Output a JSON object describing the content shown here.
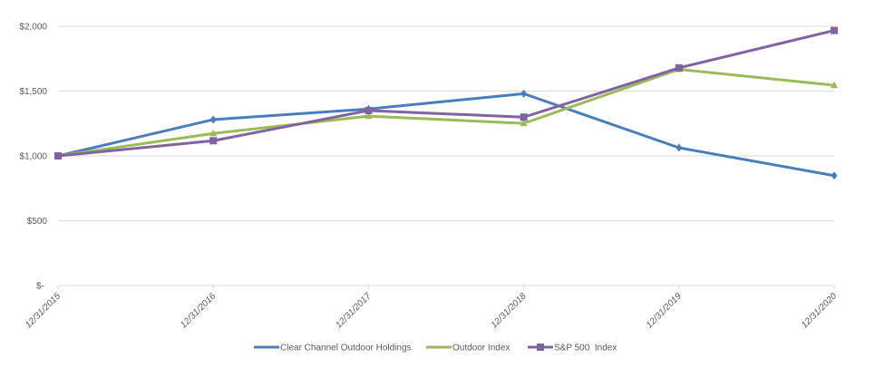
{
  "chart_data": {
    "type": "line",
    "title": "",
    "xlabel": "",
    "ylabel": "",
    "categories": [
      "12/31/2015",
      "12/31/2016",
      "12/31/2017",
      "12/31/2018",
      "12/31/2019",
      "12/31/2020"
    ],
    "ylim": [
      0,
      2000
    ],
    "yticks": [
      0,
      500,
      1000,
      1500,
      2000
    ],
    "ytick_labels": [
      "$-",
      "$500",
      "$1,000",
      "$1,500",
      "$2,000"
    ],
    "grid": true,
    "legend_position": "bottom",
    "series": [
      {
        "name": "Clear Channel Outdoor Holdings",
        "color": "#4A7EBB",
        "marker": "diamond",
        "values": [
          1000,
          1280,
          1362,
          1480,
          1063,
          848
        ]
      },
      {
        "name": "Outdoor Index",
        "color": "#9BBB59",
        "marker": "triangle",
        "values": [
          1000,
          1173,
          1307,
          1251,
          1668,
          1545
        ]
      },
      {
        "name": "S&P 500  Index",
        "color": "#8064A2",
        "marker": "square",
        "values": [
          1000,
          1117,
          1350,
          1299,
          1679,
          1968
        ]
      }
    ]
  }
}
